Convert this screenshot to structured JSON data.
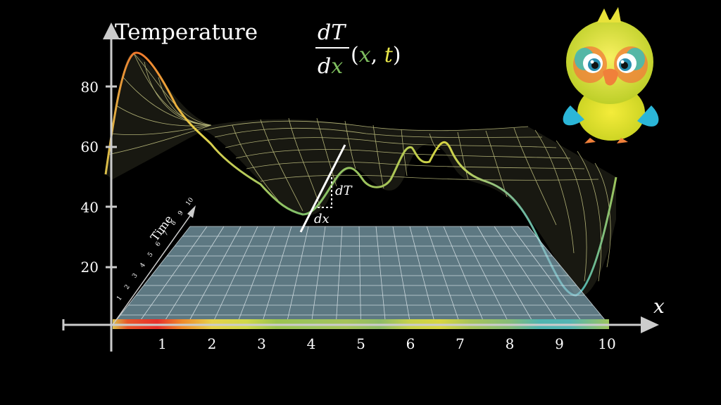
{
  "title": "Temperature",
  "axes": {
    "y_label": "Temperature",
    "x_label": "x",
    "time_label": "Time",
    "y_ticks": [
      "20",
      "40",
      "60",
      "80"
    ],
    "x_ticks": [
      "1",
      "2",
      "3",
      "4",
      "5",
      "6",
      "7",
      "8",
      "9",
      "10"
    ],
    "time_ticks": [
      "1",
      "2",
      "3",
      "4",
      "5",
      "6",
      "7",
      "8",
      "9",
      "10"
    ]
  },
  "formula": {
    "numerator": "dT",
    "denominator_d": "d",
    "denominator_x": "x",
    "open": "(",
    "arg_x": "x",
    "comma": ", ",
    "arg_t": "t",
    "close": ")"
  },
  "slope_annotation": {
    "dT": "dT",
    "dx": "dx"
  },
  "colors": {
    "x_green": "#7fbf5f",
    "t_yellow": "#e8e64a",
    "mesh": "#f2f2a0",
    "plane": "#8fb8c8",
    "axis": "#cccccc"
  },
  "mascot": {
    "icon": "parrot-mascot-icon"
  }
}
